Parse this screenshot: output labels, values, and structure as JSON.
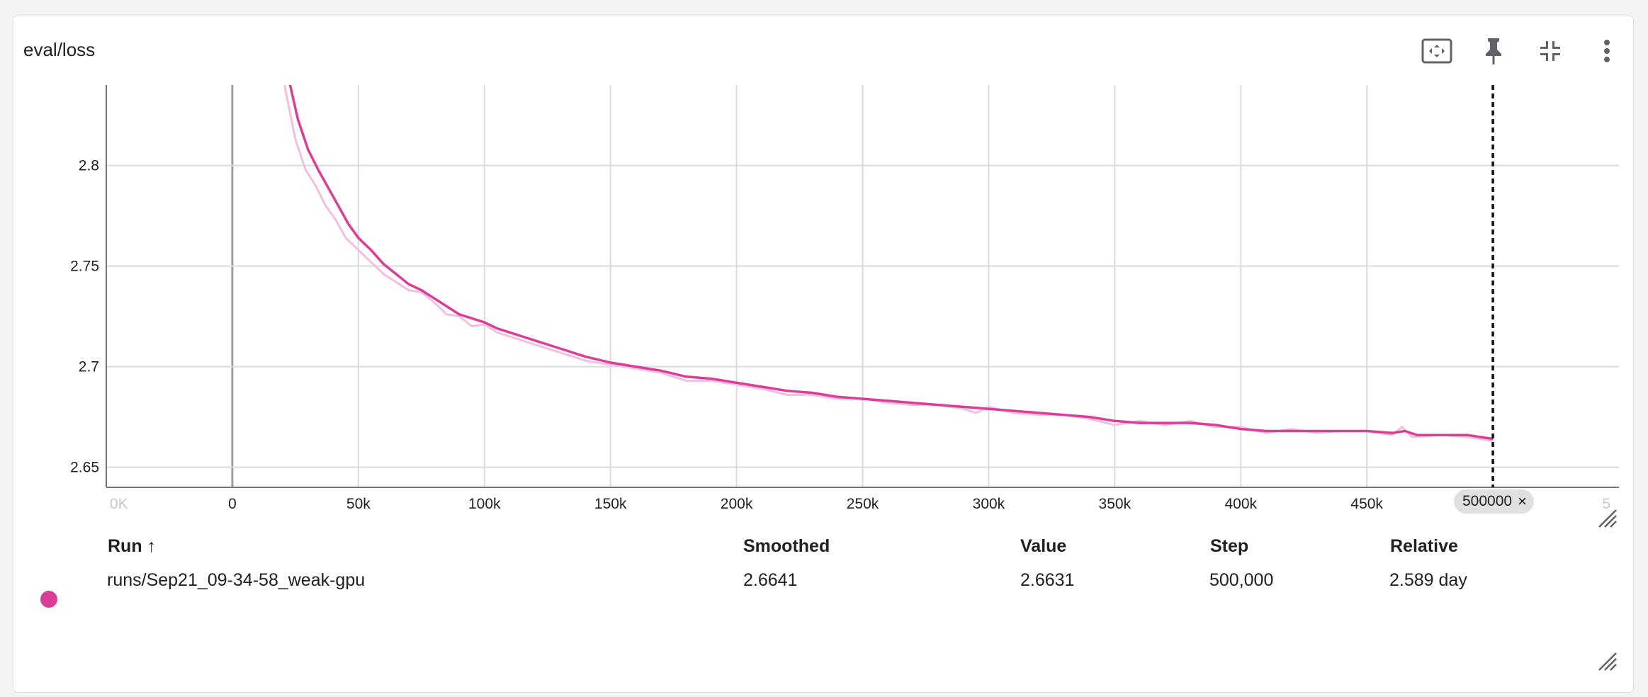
{
  "card": {
    "title": "eval/loss",
    "toolbar": {
      "fit_icon": "fit-domain-icon",
      "pin_icon": "pin-icon",
      "collapse_icon": "collapse-icon",
      "menu_icon": "more-vert-icon"
    }
  },
  "colors": {
    "series": "#d93f97",
    "raw": "#f2bfe0",
    "grid": "#dadada"
  },
  "chart_data": {
    "type": "line",
    "xlim": [
      -50000,
      550000
    ],
    "ylim": [
      2.64,
      2.84
    ],
    "x_ticks": [
      0,
      50000,
      100000,
      150000,
      200000,
      250000,
      300000,
      350000,
      400000,
      450000
    ],
    "x_tick_labels": [
      "0",
      "50k",
      "100k",
      "150k",
      "200k",
      "250k",
      "300k",
      "350k",
      "400k",
      "450k"
    ],
    "x_edge_labels": [
      "0K",
      "5"
    ],
    "y_ticks": [
      2.65,
      2.7,
      2.75,
      2.8
    ],
    "y_tick_labels": [
      "2.65",
      "2.7",
      "2.75",
      "2.8"
    ],
    "cursor_step": 500000,
    "cursor_label": "500000",
    "series": [
      {
        "values": [
          [
            18700,
            2.88
          ],
          [
            22000,
            2.845
          ],
          [
            26000,
            2.823
          ],
          [
            30000,
            2.808
          ],
          [
            34000,
            2.798
          ],
          [
            38000,
            2.789
          ],
          [
            42000,
            2.78
          ],
          [
            46000,
            2.771
          ],
          [
            50000,
            2.764
          ],
          [
            55000,
            2.758
          ],
          [
            60000,
            2.751
          ],
          [
            65000,
            2.746
          ],
          [
            70000,
            2.741
          ],
          [
            75000,
            2.738
          ],
          [
            80000,
            2.734
          ],
          [
            85000,
            2.73
          ],
          [
            90000,
            2.726
          ],
          [
            95000,
            2.724
          ],
          [
            100000,
            2.722
          ],
          [
            105000,
            2.719
          ],
          [
            110000,
            2.717
          ],
          [
            115000,
            2.715
          ],
          [
            120000,
            2.713
          ],
          [
            130000,
            2.709
          ],
          [
            140000,
            2.705
          ],
          [
            150000,
            2.702
          ],
          [
            160000,
            2.7
          ],
          [
            170000,
            2.698
          ],
          [
            180000,
            2.695
          ],
          [
            190000,
            2.694
          ],
          [
            200000,
            2.692
          ],
          [
            210000,
            2.69
          ],
          [
            220000,
            2.688
          ],
          [
            230000,
            2.687
          ],
          [
            240000,
            2.685
          ],
          [
            250000,
            2.684
          ],
          [
            260000,
            2.683
          ],
          [
            270000,
            2.682
          ],
          [
            280000,
            2.681
          ],
          [
            290000,
            2.68
          ],
          [
            300000,
            2.679
          ],
          [
            310000,
            2.678
          ],
          [
            320000,
            2.677
          ],
          [
            330000,
            2.676
          ],
          [
            340000,
            2.675
          ],
          [
            350000,
            2.673
          ],
          [
            360000,
            2.672
          ],
          [
            370000,
            2.672
          ],
          [
            380000,
            2.672
          ],
          [
            390000,
            2.671
          ],
          [
            400000,
            2.669
          ],
          [
            410000,
            2.668
          ],
          [
            420000,
            2.668
          ],
          [
            430000,
            2.668
          ],
          [
            440000,
            2.668
          ],
          [
            450000,
            2.668
          ],
          [
            460000,
            2.667
          ],
          [
            465000,
            2.668
          ],
          [
            470000,
            2.666
          ],
          [
            480000,
            2.666
          ],
          [
            490000,
            2.666
          ],
          [
            500000,
            2.6641
          ]
        ]
      }
    ],
    "raw_values": [
      [
        17500,
        2.88
      ],
      [
        21000,
        2.838
      ],
      [
        25000,
        2.813
      ],
      [
        29000,
        2.798
      ],
      [
        33000,
        2.79
      ],
      [
        37000,
        2.78
      ],
      [
        41000,
        2.773
      ],
      [
        45000,
        2.764
      ],
      [
        50000,
        2.758
      ],
      [
        55000,
        2.752
      ],
      [
        60000,
        2.746
      ],
      [
        65000,
        2.742
      ],
      [
        70000,
        2.738
      ],
      [
        75000,
        2.737
      ],
      [
        80000,
        2.732
      ],
      [
        85000,
        2.726
      ],
      [
        90000,
        2.725
      ],
      [
        95000,
        2.72
      ],
      [
        100000,
        2.721
      ],
      [
        105000,
        2.717
      ],
      [
        110000,
        2.715
      ],
      [
        115000,
        2.713
      ],
      [
        120000,
        2.711
      ],
      [
        130000,
        2.707
      ],
      [
        140000,
        2.703
      ],
      [
        150000,
        2.701
      ],
      [
        160000,
        2.699
      ],
      [
        170000,
        2.697
      ],
      [
        180000,
        2.693
      ],
      [
        190000,
        2.693
      ],
      [
        200000,
        2.691
      ],
      [
        210000,
        2.689
      ],
      [
        220000,
        2.686
      ],
      [
        230000,
        2.686
      ],
      [
        240000,
        2.684
      ],
      [
        250000,
        2.684
      ],
      [
        260000,
        2.682
      ],
      [
        270000,
        2.681
      ],
      [
        280000,
        2.681
      ],
      [
        290000,
        2.679
      ],
      [
        295000,
        2.677
      ],
      [
        300000,
        2.68
      ],
      [
        310000,
        2.677
      ],
      [
        320000,
        2.676
      ],
      [
        330000,
        2.676
      ],
      [
        340000,
        2.674
      ],
      [
        350000,
        2.671
      ],
      [
        360000,
        2.673
      ],
      [
        370000,
        2.671
      ],
      [
        380000,
        2.673
      ],
      [
        390000,
        2.67
      ],
      [
        400000,
        2.67
      ],
      [
        410000,
        2.667
      ],
      [
        420000,
        2.669
      ],
      [
        430000,
        2.667
      ],
      [
        440000,
        2.668
      ],
      [
        450000,
        2.668
      ],
      [
        460000,
        2.666
      ],
      [
        464000,
        2.67
      ],
      [
        468000,
        2.665
      ],
      [
        480000,
        2.666
      ],
      [
        490000,
        2.665
      ],
      [
        500000,
        2.6631
      ]
    ]
  },
  "table": {
    "headers": {
      "run": "Run ↑",
      "smoothed": "Smoothed",
      "value": "Value",
      "step": "Step",
      "relative": "Relative"
    },
    "rows": [
      {
        "run": "runs/Sep21_09-34-58_weak-gpu",
        "smoothed": "2.6641",
        "value": "2.6631",
        "step": "500,000",
        "relative": "2.589 day"
      }
    ]
  }
}
